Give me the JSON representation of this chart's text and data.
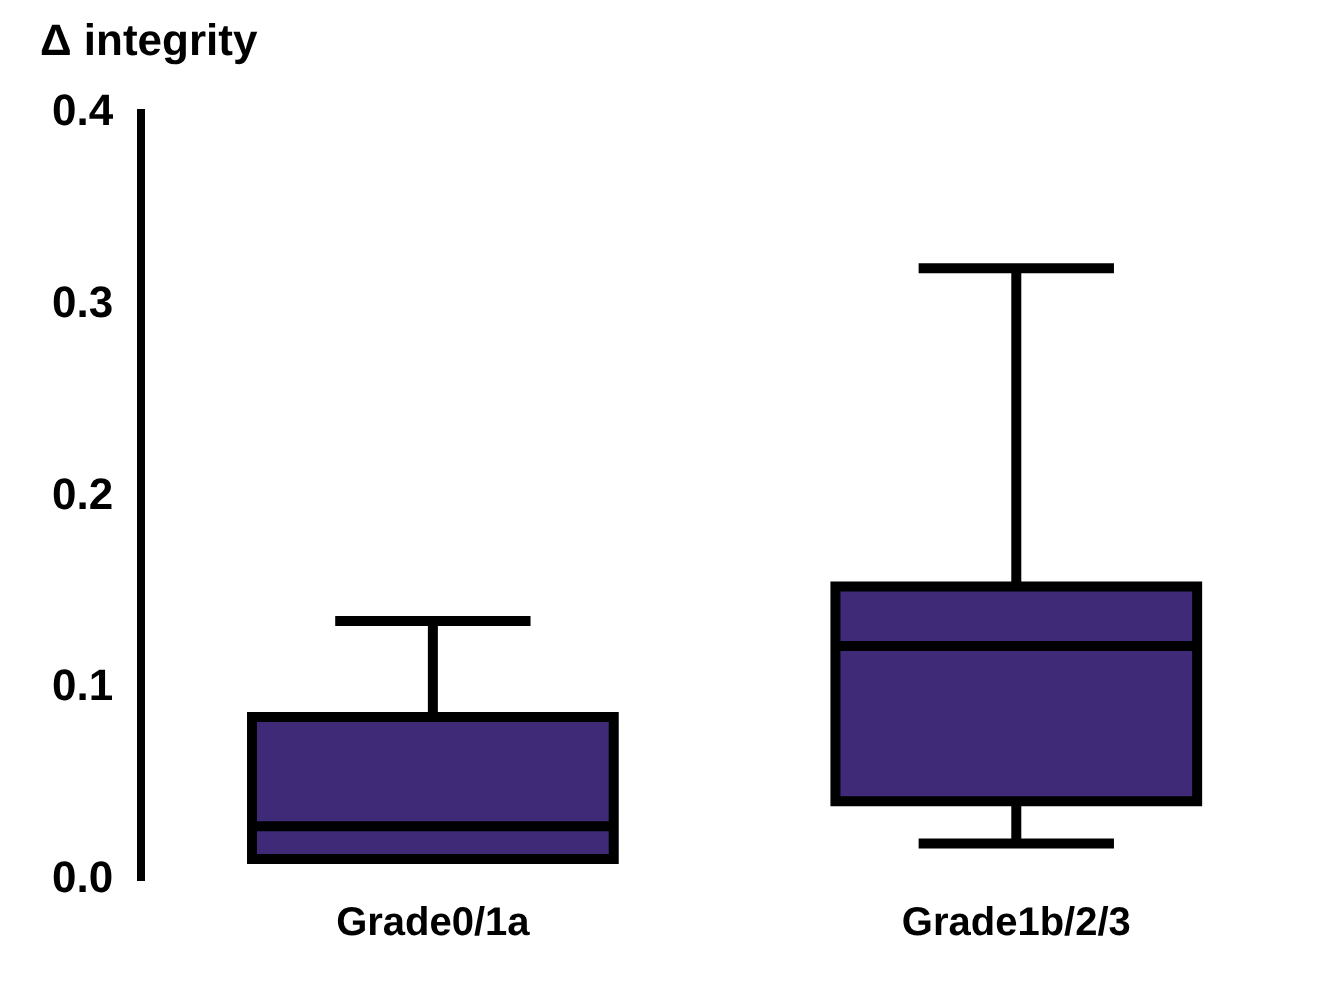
{
  "chart_data": {
    "type": "box",
    "ylabel": "Δ integrity",
    "categories": [
      "Grade0/1a",
      "Grade1b/2/3"
    ],
    "color": "#3f2a78",
    "boxes": [
      {
        "low": 0.011,
        "q1": 0.011,
        "median": 0.028,
        "q3": 0.085,
        "high": 0.135
      },
      {
        "low": 0.019,
        "q1": 0.041,
        "median": 0.122,
        "q3": 0.153,
        "high": 0.319
      }
    ],
    "ylim": [
      0,
      0.4
    ],
    "yticks": [
      {
        "value": 0,
        "label": "0.0"
      },
      {
        "value": 0.1,
        "label": "0.1"
      },
      {
        "value": 0.2,
        "label": "0.2"
      },
      {
        "value": 0.3,
        "label": "0.3"
      },
      {
        "value": 0.4,
        "label": "0.4"
      }
    ],
    "grid": false
  }
}
